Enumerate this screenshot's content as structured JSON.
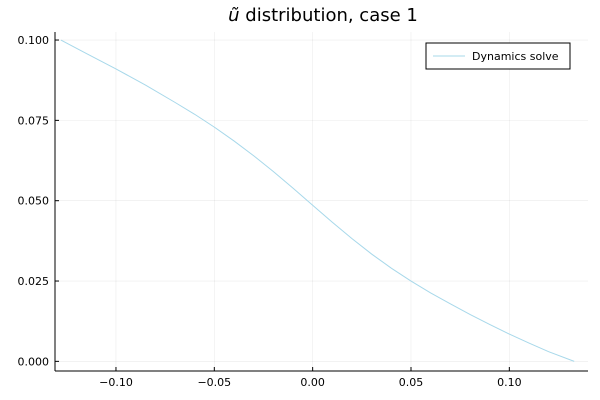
{
  "chart_data": {
    "type": "line",
    "title_symbol": "ũ",
    "title_rest": " distribution, case 1",
    "xlabel": "",
    "ylabel": "",
    "xlim": [
      -0.131,
      0.14
    ],
    "ylim": [
      -0.003,
      0.1025
    ],
    "grid": true,
    "legend_position": "top-right",
    "x_ticks": [
      -0.1,
      -0.05,
      0.0,
      0.05,
      0.1
    ],
    "x_tick_labels": [
      "−0.10",
      "−0.05",
      "0.00",
      "0.05",
      "0.10"
    ],
    "y_ticks": [
      0.0,
      0.025,
      0.05,
      0.075,
      0.1
    ],
    "y_tick_labels": [
      "0.000",
      "0.025",
      "0.050",
      "0.075",
      "0.100"
    ],
    "series": [
      {
        "name": "Dynamics solve",
        "color": "#a7d8ea",
        "x": [
          -0.128,
          -0.115,
          -0.1,
          -0.085,
          -0.07,
          -0.06,
          -0.05,
          -0.04,
          -0.03,
          -0.02,
          -0.01,
          0.0,
          0.01,
          0.02,
          0.03,
          0.04,
          0.05,
          0.06,
          0.07,
          0.08,
          0.09,
          0.1,
          0.11,
          0.12,
          0.133
        ],
        "y": [
          0.1,
          0.0958,
          0.091,
          0.086,
          0.0806,
          0.0769,
          0.0729,
          0.0686,
          0.064,
          0.0591,
          0.0539,
          0.0486,
          0.0433,
          0.0382,
          0.0334,
          0.029,
          0.025,
          0.0213,
          0.0179,
          0.0146,
          0.0115,
          0.0085,
          0.0057,
          0.003,
          0.0
        ]
      }
    ]
  }
}
